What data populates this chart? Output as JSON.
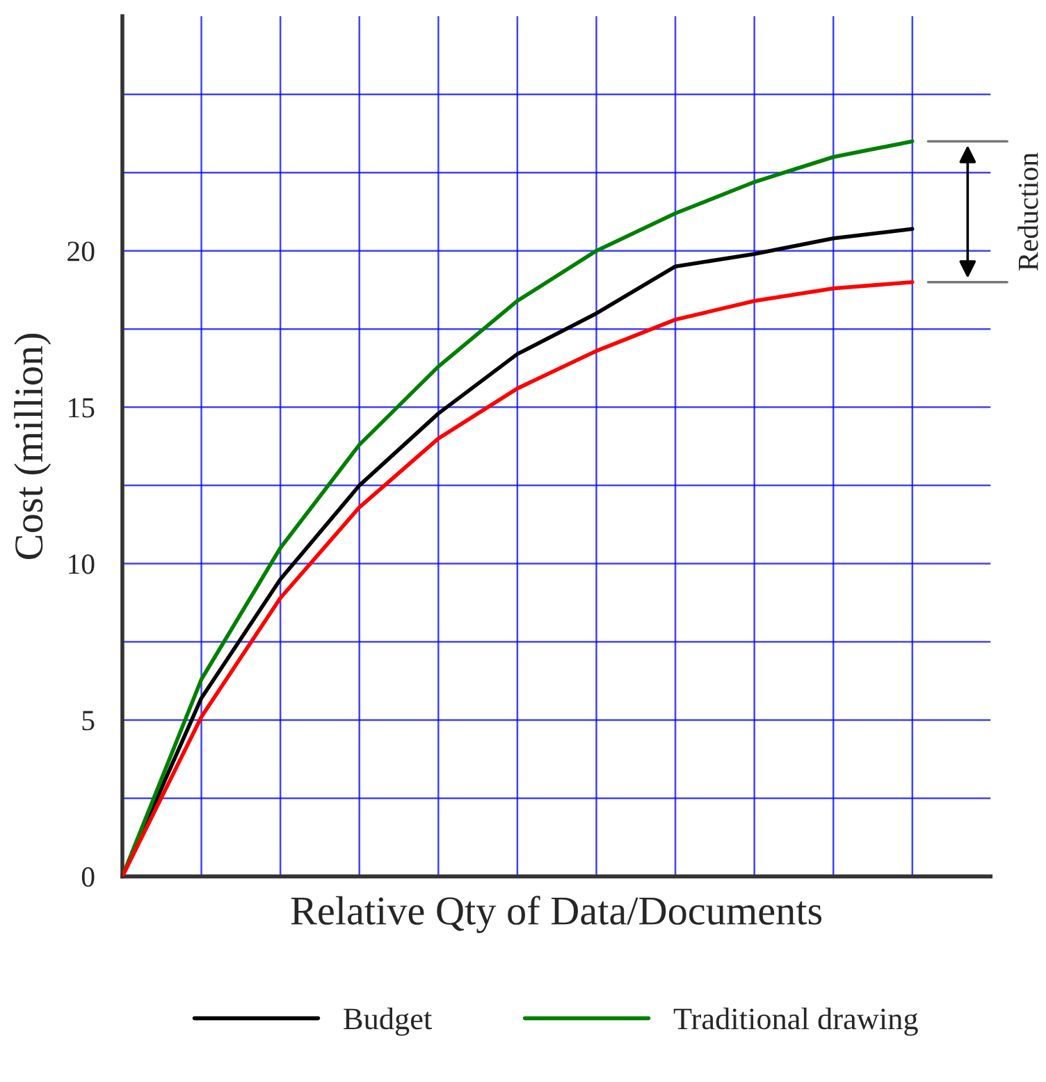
{
  "chart_data": {
    "type": "line",
    "xlabel": "Relative Qty of Data/Documents",
    "ylabel": "Cost (million)",
    "categories": [
      null,
      null,
      null,
      null,
      null,
      null,
      null,
      null,
      null,
      null,
      null
    ],
    "series": [
      {
        "name": "Budget",
        "color": "#000000",
        "values": [
          0,
          5.7,
          9.5,
          12.5,
          14.8,
          16.7,
          18.0,
          19.5,
          19.9,
          20.4,
          20.7
        ]
      },
      {
        "name": "Traditional drawing",
        "color": "#008000",
        "values": [
          0,
          6.3,
          10.5,
          13.8,
          16.3,
          18.4,
          20.0,
          21.2,
          22.2,
          23.0,
          23.5
        ]
      },
      {
        "color": "#ff0000",
        "values": [
          0,
          5.1,
          8.9,
          11.8,
          14.0,
          15.6,
          16.8,
          17.8,
          18.4,
          18.8,
          19.0
        ]
      }
    ],
    "ylim": [
      0,
      27.5
    ],
    "yticks": [
      0,
      {
        "value": 2.5,
        "label": null
      },
      5,
      {
        "value": 7.5,
        "label": null
      },
      10,
      {
        "value": 12.5,
        "label": null
      },
      15,
      {
        "value": 17.5,
        "label": null
      },
      20,
      {
        "value": 22.5,
        "label": null
      },
      {
        "value": 25,
        "label": null
      }
    ],
    "annotations": [
      "Reduction"
    ],
    "grid": true,
    "legend": "bottom",
    "tick_labels": "y",
    "marker": "none",
    "line_style": "solid"
  }
}
